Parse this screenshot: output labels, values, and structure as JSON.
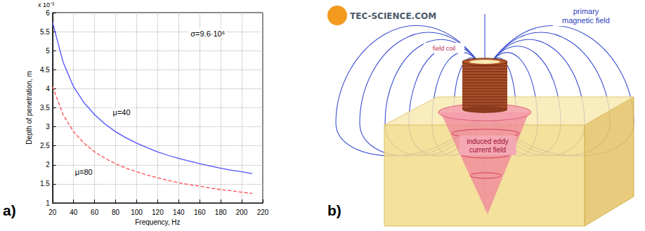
{
  "chart_data": {
    "type": "line",
    "panel_label": "a)",
    "xlabel": "Frequency, Hz",
    "ylabel": "Depth of penetration, m",
    "y_multiplier": "x 10⁻³",
    "annotations": [
      "σ=9.6·10⁶"
    ],
    "x": [
      20,
      30,
      40,
      50,
      60,
      70,
      80,
      90,
      100,
      110,
      120,
      130,
      140,
      150,
      160,
      170,
      180,
      190,
      200,
      210
    ],
    "series": [
      {
        "name": "μ=40",
        "color": "#4f4fff",
        "line_style": "solid",
        "values": [
          5.75,
          4.7,
          4.05,
          3.63,
          3.32,
          3.07,
          2.87,
          2.71,
          2.57,
          2.45,
          2.34,
          2.25,
          2.17,
          2.1,
          2.03,
          1.97,
          1.91,
          1.86,
          1.82,
          1.77
        ]
      },
      {
        "name": "μ=80",
        "color": "#ff4a4a",
        "line_style": "dashed",
        "values": [
          4.06,
          3.32,
          2.87,
          2.57,
          2.34,
          2.17,
          2.03,
          1.91,
          1.82,
          1.73,
          1.66,
          1.59,
          1.53,
          1.48,
          1.44,
          1.39,
          1.35,
          1.32,
          1.28,
          1.25
        ]
      }
    ],
    "xlim": [
      20,
      220
    ],
    "xticks": [
      20,
      40,
      60,
      80,
      100,
      120,
      140,
      160,
      180,
      200,
      220
    ],
    "ylim": [
      1,
      6
    ],
    "yticks": [
      1,
      1.5,
      2,
      2.5,
      3,
      3.5,
      4,
      4.5,
      5,
      5.5,
      6
    ],
    "grid": true
  },
  "diagram": {
    "panel_label": "b)",
    "logo": "TEC-SCIENCE.COM",
    "labels": {
      "primary_field": "primary magnetic field",
      "coil": "field coil",
      "eddy": "induced eddy current field"
    }
  }
}
